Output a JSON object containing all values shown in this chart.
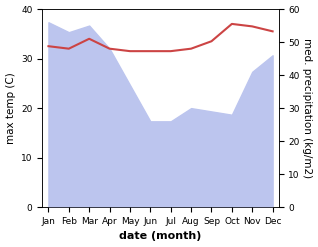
{
  "months": [
    "Jan",
    "Feb",
    "Mar",
    "Apr",
    "May",
    "Jun",
    "Jul",
    "Aug",
    "Sep",
    "Oct",
    "Nov",
    "Dec"
  ],
  "x": [
    0,
    1,
    2,
    3,
    4,
    5,
    6,
    7,
    8,
    9,
    10,
    11
  ],
  "temp_max": [
    32.5,
    32.0,
    34.0,
    32.0,
    31.5,
    31.5,
    31.5,
    32.0,
    33.5,
    37.0,
    36.5,
    35.5
  ],
  "precipitation_raw": [
    56,
    53,
    55,
    48,
    37,
    26,
    26,
    30,
    29,
    28,
    41,
    46
  ],
  "temp_color": "#cc4444",
  "precip_fill_color": "#bcc5ee",
  "ylim_left": [
    0,
    40
  ],
  "ylim_right": [
    0,
    60
  ],
  "xlabel": "date (month)",
  "ylabel_left": "max temp (C)",
  "ylabel_right": "med. precipitation (kg/m2)",
  "label_fontsize": 7.5,
  "tick_fontsize": 6.5
}
